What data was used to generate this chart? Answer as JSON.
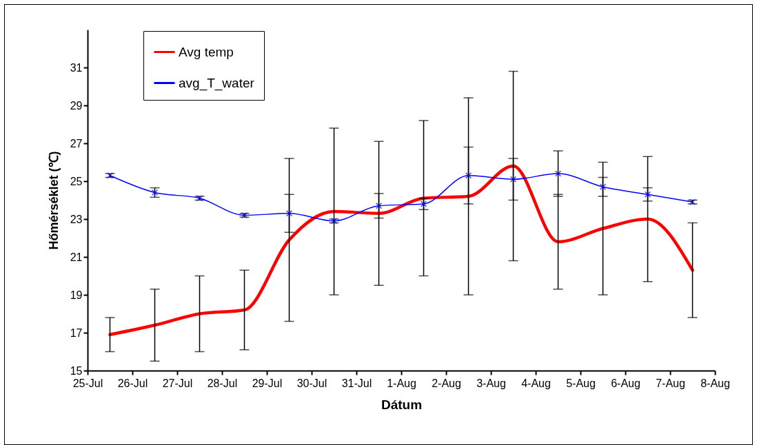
{
  "chart_data": {
    "type": "line",
    "xlabel": "Dátum",
    "ylabel": "Hőmérséklet (℃)",
    "x": [
      "--07-25T12:00",
      "--07-26T12:00",
      "--07-27T12:00",
      "--07-28T12:00",
      "--07-29T12:00",
      "--07-30T12:00",
      "--07-31T12:00",
      "--08-01T12:00",
      "--08-02T12:00",
      "--08-03T12:00",
      "--08-04T12:00",
      "--08-05T12:00",
      "--08-06T12:00",
      "--08-07T12:00"
    ],
    "series": [
      {
        "name": "Avg temp",
        "color": "#ff0000",
        "marker": "none",
        "values": [
          16.9,
          17.4,
          18.0,
          18.2,
          21.9,
          23.4,
          23.3,
          24.1,
          24.2,
          25.8,
          21.8,
          22.5,
          23.0,
          20.3
        ],
        "errors": [
          0.9,
          1.9,
          2.0,
          2.1,
          4.3,
          4.4,
          3.8,
          4.1,
          5.2,
          5.0,
          2.5,
          3.5,
          3.3,
          2.5
        ]
      },
      {
        "name": "avg_T_water",
        "color": "#0000ff",
        "marker": "cross",
        "values": [
          25.3,
          24.4,
          24.1,
          23.2,
          23.3,
          22.9,
          23.7,
          23.8,
          25.3,
          25.1,
          25.4,
          24.7,
          24.3,
          23.9
        ],
        "errors": [
          0.1,
          0.25,
          0.1,
          0.1,
          1.0,
          0.1,
          0.65,
          0.3,
          1.5,
          1.1,
          1.2,
          0.5,
          0.35,
          0.1
        ]
      }
    ],
    "xlim": [
      "--07-25",
      "--08-08"
    ],
    "xticks": [
      {
        "value": "--07-25",
        "label": "25-Jul"
      },
      {
        "value": "--07-26",
        "label": "26-Jul"
      },
      {
        "value": "--07-27",
        "label": "27-Jul"
      },
      {
        "value": "--07-28",
        "label": "28-Jul"
      },
      {
        "value": "--07-29",
        "label": "29-Jul"
      },
      {
        "value": "--07-30",
        "label": "30-Jul"
      },
      {
        "value": "--07-31",
        "label": "31-Jul"
      },
      {
        "value": "--08-01",
        "label": "1-Aug"
      },
      {
        "value": "--08-02",
        "label": "2-Aug"
      },
      {
        "value": "--08-03",
        "label": "3-Aug"
      },
      {
        "value": "--08-04",
        "label": "4-Aug"
      },
      {
        "value": "--08-05",
        "label": "5-Aug"
      },
      {
        "value": "--08-06",
        "label": "6-Aug"
      },
      {
        "value": "--08-07",
        "label": "7-Aug"
      },
      {
        "value": "--08-08",
        "label": "8-Aug"
      }
    ],
    "ylim": [
      15,
      33
    ],
    "yticks": [
      15,
      17,
      19,
      21,
      23,
      25,
      27,
      29,
      31
    ],
    "grid": false,
    "legend": "top left",
    "line_style": "solid"
  }
}
